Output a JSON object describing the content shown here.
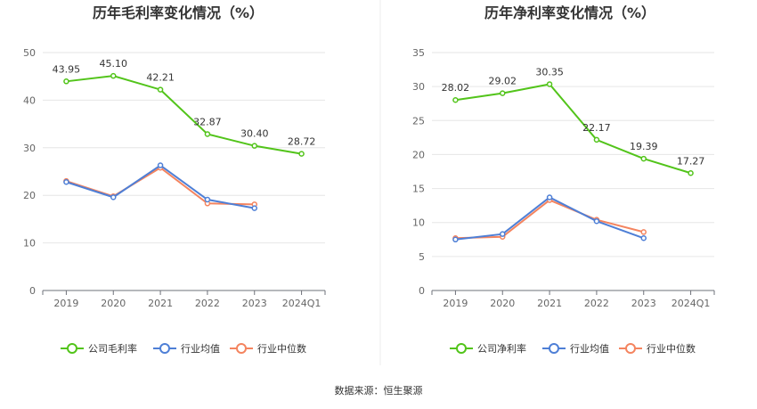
{
  "chart_data": [
    {
      "type": "line",
      "title": "历年毛利率变化情况（%）",
      "categories": [
        "2019",
        "2020",
        "2021",
        "2022",
        "2023",
        "2024Q1"
      ],
      "ylim": [
        0,
        50
      ],
      "yticks": [
        0,
        10,
        20,
        30,
        40,
        50
      ],
      "grid": true,
      "legend_position": "bottom",
      "series": [
        {
          "name": "公司毛利率",
          "color": "#52c41a",
          "values": [
            43.95,
            45.1,
            42.21,
            32.87,
            30.4,
            28.72
          ],
          "labeled": true
        },
        {
          "name": "行业均值",
          "color": "#4e7fd6",
          "values": [
            22.8,
            19.6,
            26.3,
            19.1,
            17.3,
            null
          ],
          "labeled": false
        },
        {
          "name": "行业中位数",
          "color": "#f4845f",
          "values": [
            23.0,
            19.8,
            25.8,
            18.3,
            18.1,
            null
          ],
          "labeled": false
        }
      ]
    },
    {
      "type": "line",
      "title": "历年净利率变化情况（%）",
      "categories": [
        "2019",
        "2020",
        "2021",
        "2022",
        "2023",
        "2024Q1"
      ],
      "ylim": [
        0,
        35
      ],
      "yticks": [
        0,
        5,
        10,
        15,
        20,
        25,
        30,
        35
      ],
      "grid": true,
      "legend_position": "bottom",
      "series": [
        {
          "name": "公司净利率",
          "color": "#52c41a",
          "values": [
            28.02,
            29.02,
            30.35,
            22.17,
            19.39,
            17.27
          ],
          "labeled": true
        },
        {
          "name": "行业均值",
          "color": "#4e7fd6",
          "values": [
            7.5,
            8.3,
            13.7,
            10.2,
            7.7,
            null
          ],
          "labeled": false
        },
        {
          "name": "行业中位数",
          "color": "#f4845f",
          "values": [
            7.7,
            7.9,
            13.3,
            10.4,
            8.6,
            null
          ],
          "labeled": false
        }
      ]
    }
  ],
  "footer": {
    "source": "数据来源：恒生聚源"
  }
}
